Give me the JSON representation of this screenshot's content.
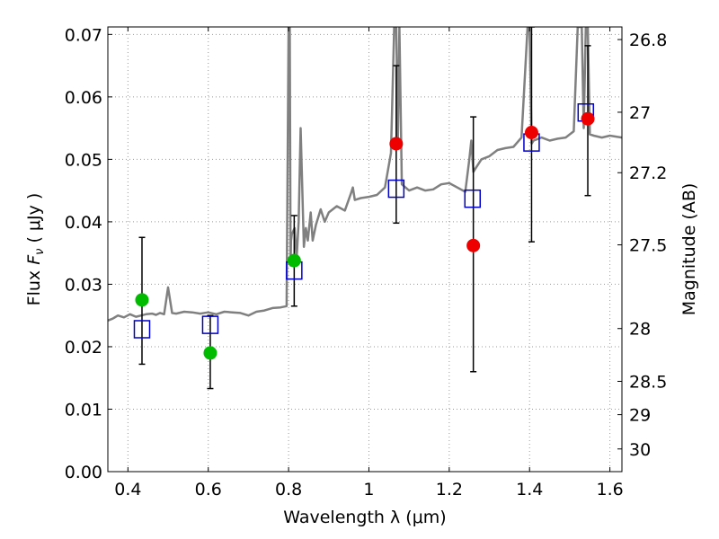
{
  "chart_data": {
    "type": "scatter",
    "xlabel": "Wavelength  λ (μm)",
    "ylabel": "Flux  F_ν  ( μJy )",
    "ylabel_parts": {
      "pre": "Flux  ",
      "sym": "F",
      "sub": "ν",
      "post": "  ( μJy )"
    },
    "y2label": "Magnitude (AB)",
    "xlim": [
      0.35,
      1.63
    ],
    "ylim": [
      0.0,
      0.0712
    ],
    "grid": true,
    "x_ticks": [
      0.4,
      0.6,
      0.8,
      1.0,
      1.2,
      1.4,
      1.6
    ],
    "x_tick_labels": [
      "0.4",
      "0.6",
      "0.8",
      "1",
      "1.2",
      "1.4",
      "1.6"
    ],
    "y_ticks": [
      0.0,
      0.01,
      0.02,
      0.03,
      0.04,
      0.05,
      0.06,
      0.07
    ],
    "y_tick_labels": [
      "0.00",
      "0.01",
      "0.02",
      "0.03",
      "0.04",
      "0.05",
      "0.06",
      "0.07"
    ],
    "y2_tick_labels": [
      "26.8",
      "27",
      "27.2",
      "27.5",
      "28",
      "28.5",
      "29",
      "30"
    ],
    "colors": {
      "model": "#808080",
      "model_points": "#0000cc",
      "optical_observed": "#00bb00",
      "nir_observed": "#ee0000",
      "errorbar": "#000000",
      "grid": "#999999"
    },
    "model_spectrum": {
      "x": [
        0.35,
        0.362,
        0.375,
        0.39,
        0.405,
        0.42,
        0.433,
        0.445,
        0.46,
        0.47,
        0.48,
        0.49,
        0.5,
        0.51,
        0.52,
        0.54,
        0.56,
        0.58,
        0.6,
        0.62,
        0.64,
        0.66,
        0.68,
        0.7,
        0.72,
        0.74,
        0.76,
        0.78,
        0.795,
        0.8,
        0.803,
        0.805,
        0.806,
        0.808,
        0.815,
        0.82,
        0.825,
        0.83,
        0.838,
        0.843,
        0.848,
        0.855,
        0.86,
        0.868,
        0.88,
        0.89,
        0.9,
        0.92,
        0.94,
        0.955,
        0.96,
        0.965,
        0.98,
        1.0,
        1.02,
        1.04,
        1.055,
        1.063,
        1.068,
        1.072,
        1.076,
        1.082,
        1.1,
        1.12,
        1.14,
        1.16,
        1.18,
        1.2,
        1.22,
        1.24,
        1.25,
        1.255,
        1.26,
        1.265,
        1.28,
        1.3,
        1.32,
        1.34,
        1.36,
        1.38,
        1.395,
        1.4,
        1.405,
        1.41,
        1.43,
        1.45,
        1.47,
        1.49,
        1.51,
        1.52,
        1.53,
        1.535,
        1.54,
        1.545,
        1.55,
        1.56,
        1.58,
        1.6,
        1.63
      ],
      "y": [
        0.0242,
        0.0245,
        0.025,
        0.0247,
        0.0252,
        0.0248,
        0.025,
        0.0252,
        0.0253,
        0.0251,
        0.0254,
        0.0252,
        0.0295,
        0.0254,
        0.0253,
        0.0256,
        0.0255,
        0.0253,
        0.0255,
        0.0252,
        0.0256,
        0.0255,
        0.0254,
        0.025,
        0.0256,
        0.0258,
        0.0262,
        0.0263,
        0.0265,
        0.0712,
        0.0712,
        0.033,
        0.037,
        0.038,
        0.039,
        0.034,
        0.04,
        0.055,
        0.036,
        0.039,
        0.037,
        0.0415,
        0.037,
        0.0395,
        0.042,
        0.04,
        0.0415,
        0.0425,
        0.0418,
        0.0445,
        0.0455,
        0.0435,
        0.0438,
        0.044,
        0.0443,
        0.0455,
        0.051,
        0.0712,
        0.0712,
        0.052,
        0.0712,
        0.046,
        0.045,
        0.0455,
        0.045,
        0.0452,
        0.046,
        0.0462,
        0.0455,
        0.0448,
        0.05,
        0.053,
        0.048,
        0.0485,
        0.05,
        0.0505,
        0.0515,
        0.0518,
        0.052,
        0.0535,
        0.0712,
        0.0712,
        0.0525,
        0.053,
        0.0535,
        0.053,
        0.0533,
        0.0535,
        0.0545,
        0.0712,
        0.0712,
        0.055,
        0.0712,
        0.0712,
        0.054,
        0.0538,
        0.0535,
        0.0538,
        0.0535
      ]
    },
    "model_points": [
      {
        "x": 0.435,
        "y": 0.0228
      },
      {
        "x": 0.605,
        "y": 0.0235
      },
      {
        "x": 0.814,
        "y": 0.0322
      },
      {
        "x": 1.068,
        "y": 0.0453
      },
      {
        "x": 1.258,
        "y": 0.0437
      },
      {
        "x": 1.405,
        "y": 0.0527
      },
      {
        "x": 1.54,
        "y": 0.0575
      }
    ],
    "observed": [
      {
        "band": "optical",
        "x": 0.435,
        "y": 0.0275,
        "yerr_low": 0.0172,
        "yerr_high": 0.0375
      },
      {
        "band": "optical",
        "x": 0.605,
        "y": 0.019,
        "yerr_low": 0.0133,
        "yerr_high": 0.025
      },
      {
        "band": "optical",
        "x": 0.814,
        "y": 0.0338,
        "yerr_low": 0.0265,
        "yerr_high": 0.041
      },
      {
        "band": "nir",
        "x": 1.068,
        "y": 0.0525,
        "yerr_low": 0.0398,
        "yerr_high": 0.065
      },
      {
        "band": "nir",
        "x": 1.26,
        "y": 0.0362,
        "yerr_low": 0.016,
        "yerr_high": 0.0568
      },
      {
        "band": "nir",
        "x": 1.405,
        "y": 0.0543,
        "yerr_low": 0.0368,
        "yerr_high": 0.0712
      },
      {
        "band": "nir",
        "x": 1.545,
        "y": 0.0565,
        "yerr_low": 0.0442,
        "yerr_high": 0.0682
      }
    ]
  }
}
